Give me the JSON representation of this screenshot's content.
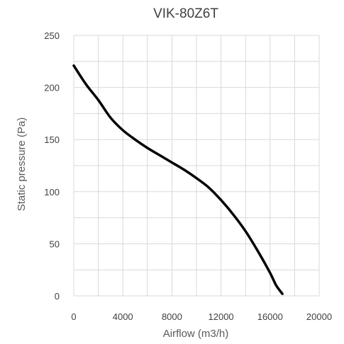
{
  "chart_data": {
    "type": "line",
    "title": "VIK-80Z6T",
    "xlabel": "Airflow (m3/h)",
    "ylabel": "Static pressure (Pa)",
    "xlim": [
      0,
      20000
    ],
    "ylim": [
      0,
      250
    ],
    "xticks": [
      0,
      4000,
      8000,
      12000,
      16000,
      20000
    ],
    "yticks": [
      0,
      50,
      100,
      150,
      200,
      250
    ],
    "grid": true,
    "series": [
      {
        "color": "#000000",
        "x": [
          0,
          1000,
          2000,
          3000,
          4000,
          5000,
          6000,
          7000,
          8000,
          9000,
          10000,
          11000,
          12000,
          13000,
          14000,
          15000,
          16000,
          16500,
          17000
        ],
        "y": [
          221,
          203,
          188,
          171,
          159,
          150,
          142,
          135,
          128,
          121,
          113,
          104,
          92,
          78,
          62,
          43,
          22,
          10,
          2
        ]
      }
    ]
  }
}
